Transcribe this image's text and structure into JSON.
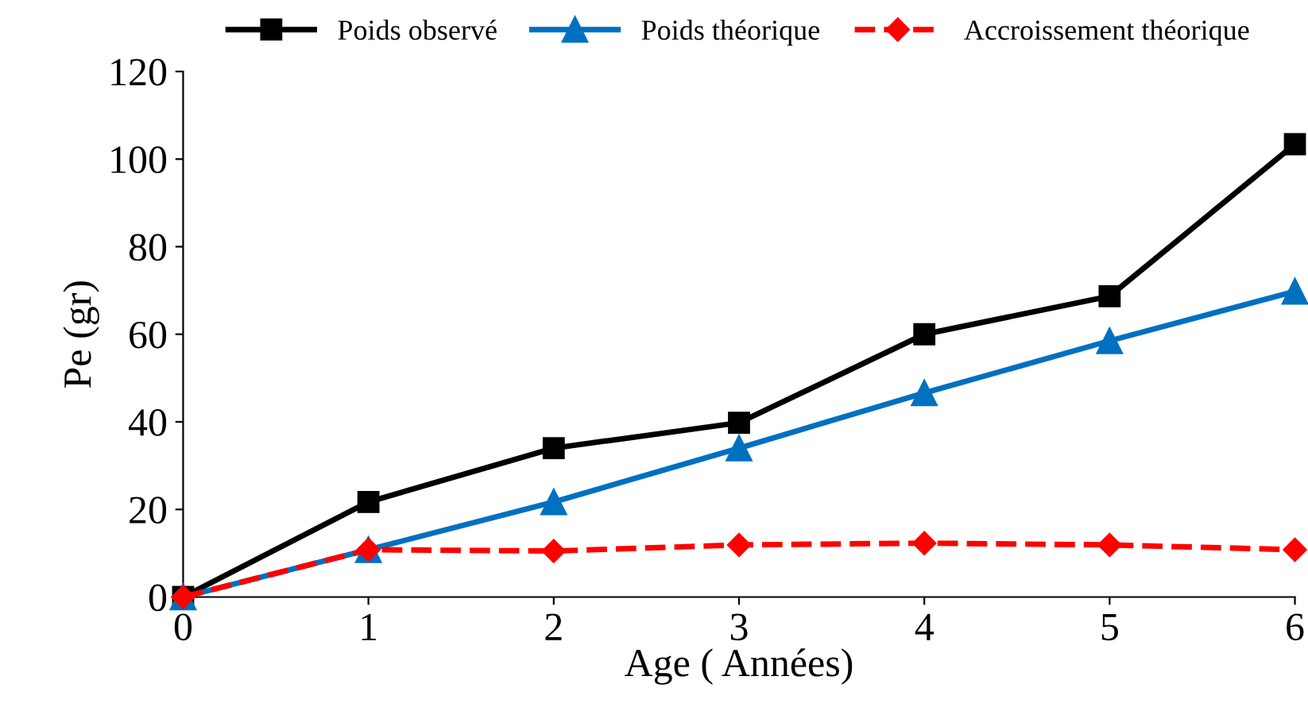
{
  "chart_data": {
    "type": "line",
    "xlabel": "Age ( Années)",
    "ylabel": "Pe (gr)",
    "x": [
      0,
      1,
      2,
      3,
      4,
      5,
      6
    ],
    "series": [
      {
        "name": "Poids observé",
        "color": "#000000",
        "marker": "square",
        "line_style": "solid",
        "values": [
          0,
          21.7,
          34,
          39.8,
          60,
          68.7,
          103.4
        ]
      },
      {
        "name": "Poids théorique",
        "color": "#0070c0",
        "marker": "triangle",
        "line_style": "solid",
        "values": [
          0,
          10.8,
          21.7,
          34,
          46.6,
          58.5,
          69.8
        ]
      },
      {
        "name": "Accroissement théorique",
        "color": "#ff0000",
        "marker": "diamond",
        "line_style": "dashed",
        "values": [
          0,
          10.8,
          10.5,
          11.9,
          12.3,
          11.9,
          10.8
        ]
      }
    ],
    "xlim": [
      0,
      6
    ],
    "xticks": [
      0,
      1,
      2,
      3,
      4,
      5,
      6
    ],
    "ylim": [
      0,
      120
    ],
    "yticks": [
      0,
      20,
      40,
      60,
      80,
      100,
      120
    ],
    "grid": false,
    "legend": "top"
  }
}
